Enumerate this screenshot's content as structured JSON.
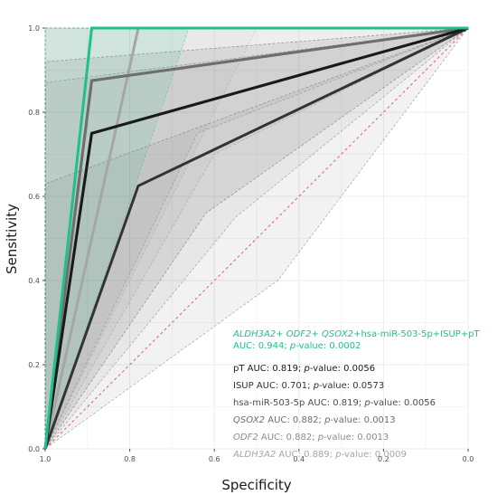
{
  "chart_data": {
    "type": "line",
    "title": "",
    "xlabel": "Specificity",
    "ylabel": "Sensitivity",
    "x_reversed": true,
    "xlim": [
      1.0,
      0.0
    ],
    "ylim": [
      0.0,
      1.0
    ],
    "x_ticks": [
      1.0,
      0.8,
      0.6,
      0.4,
      0.2,
      0.0
    ],
    "x_tick_labels": [
      "1.0",
      "0.8",
      "0.6",
      "0.4",
      "0.2",
      "0.0"
    ],
    "y_ticks": [
      0.0,
      0.2,
      0.4,
      0.6,
      0.8,
      1.0
    ],
    "y_tick_labels": [
      "0.0",
      "0.2",
      "0.4",
      "0.6",
      "0.8",
      "1.0"
    ],
    "grid": true,
    "reference_line": {
      "style": "dashed",
      "color": "#e06060",
      "from": [
        1.0,
        0.0
      ],
      "to": [
        0.0,
        1.0
      ]
    },
    "legend_position": "bottom-right",
    "series": [
      {
        "name": "ALDH3A2+ ODF2+ QSOX2+hsa-miR-503-5p+ISUP+pT",
        "auc_text": "AUC: 0.944; p-value: 0.0002",
        "color": "#1fbf8f",
        "stroke_width": 3,
        "points": [
          [
            1.0,
            0.0
          ],
          [
            0.89,
            1.0
          ],
          [
            0.0,
            1.0
          ]
        ],
        "ci_color": "#1fbf8f",
        "ci_opacity": 0.12,
        "ci_upper": [
          [
            1.0,
            0.0
          ],
          [
            1.0,
            1.0
          ],
          [
            0.0,
            1.0
          ]
        ],
        "ci_lower": [
          [
            1.0,
            0.0
          ],
          [
            0.66,
            1.0
          ],
          [
            0.0,
            1.0
          ]
        ]
      },
      {
        "name": "pT",
        "auc_text": "AUC: 0.819; p-value: 0.0056",
        "color": "#1a1a1a",
        "stroke_width": 3,
        "points": [
          [
            1.0,
            0.0
          ],
          [
            0.89,
            0.75
          ],
          [
            0.0,
            1.0
          ]
        ],
        "ci_color": "#404040",
        "ci_opacity": 0.1,
        "ci_upper": [
          [
            1.0,
            0.0
          ],
          [
            1.0,
            0.92
          ],
          [
            0.0,
            1.0
          ]
        ],
        "ci_lower": [
          [
            1.0,
            0.0
          ],
          [
            0.62,
            0.56
          ],
          [
            0.0,
            1.0
          ]
        ]
      },
      {
        "name": "ISUP",
        "auc_text": "AUC: 0.701; p-value: 0.0573",
        "color": "#333333",
        "stroke_width": 3,
        "points": [
          [
            1.0,
            0.0
          ],
          [
            0.78,
            0.625
          ],
          [
            0.0,
            1.0
          ]
        ],
        "ci_color": "#555555",
        "ci_opacity": 0.08,
        "ci_upper": [
          [
            1.0,
            0.0
          ],
          [
            1.0,
            0.63
          ],
          [
            0.0,
            1.0
          ]
        ],
        "ci_lower": [
          [
            1.0,
            0.0
          ],
          [
            0.45,
            0.4
          ],
          [
            0.0,
            1.0
          ]
        ]
      },
      {
        "name": "hsa-miR-503-5p",
        "auc_text": "AUC: 0.819; p-value: 0.0056",
        "color": "#4d4d4d",
        "stroke_width": 3,
        "points": [
          [
            1.0,
            0.0
          ],
          [
            0.89,
            0.75
          ],
          [
            0.0,
            1.0
          ]
        ],
        "ci_color": "#606060",
        "ci_opacity": 0.08,
        "ci_upper": [
          [
            1.0,
            0.0
          ],
          [
            1.0,
            0.87
          ],
          [
            0.0,
            1.0
          ]
        ],
        "ci_lower": [
          [
            1.0,
            0.0
          ],
          [
            0.55,
            0.55
          ],
          [
            0.0,
            1.0
          ]
        ]
      },
      {
        "name": "QSOX2",
        "auc_text": "AUC: 0.882; p-value: 0.0013",
        "color": "#6e6e6e",
        "stroke_width": 3,
        "points": [
          [
            1.0,
            0.0
          ],
          [
            0.89,
            0.875
          ],
          [
            0.0,
            1.0
          ]
        ],
        "ci_color": "#7a7a7a",
        "ci_opacity": 0.08,
        "ci_upper": [
          [
            1.0,
            0.0
          ],
          [
            1.0,
            1.0
          ],
          [
            0.0,
            1.0
          ]
        ],
        "ci_lower": [
          [
            1.0,
            0.0
          ],
          [
            0.64,
            0.75
          ],
          [
            0.0,
            1.0
          ]
        ]
      },
      {
        "name": "ODF2",
        "auc_text": "AUC: 0.882; p-value: 0.0013",
        "color": "#8c8c8c",
        "stroke_width": 3,
        "points": [
          [
            1.0,
            0.0
          ],
          [
            0.89,
            0.875
          ],
          [
            0.0,
            1.0
          ]
        ],
        "ci_color": "#999999",
        "ci_opacity": 0.07,
        "ci_upper": [
          [
            1.0,
            0.0
          ],
          [
            1.0,
            1.0
          ],
          [
            0.0,
            1.0
          ]
        ],
        "ci_lower": [
          [
            1.0,
            0.0
          ],
          [
            0.6,
            0.7
          ],
          [
            0.0,
            1.0
          ]
        ]
      },
      {
        "name": "ALDH3A2",
        "auc_text": "AUC: 0.889; p-value: 0.0009",
        "color": "#a6a6a6",
        "stroke_width": 3,
        "points": [
          [
            1.0,
            0.0
          ],
          [
            0.78,
            1.0
          ],
          [
            0.0,
            1.0
          ]
        ],
        "ci_color": "#b3b3b3",
        "ci_opacity": 0.08,
        "ci_upper": [
          [
            1.0,
            0.0
          ],
          [
            1.0,
            1.0
          ],
          [
            0.0,
            1.0
          ]
        ],
        "ci_lower": [
          [
            1.0,
            0.0
          ],
          [
            0.5,
            1.0
          ],
          [
            0.0,
            1.0
          ]
        ]
      }
    ],
    "legend": [
      {
        "color": "#1fbf8f",
        "parts": [
          [
            "ALDH3A2",
            "i"
          ],
          [
            "+ ",
            ""
          ],
          [
            "ODF2",
            "i"
          ],
          [
            "+ ",
            ""
          ],
          [
            "QSOX2",
            "i"
          ],
          [
            "+hsa-miR-503-5p+ISUP+pT",
            ""
          ]
        ],
        "line2": [
          [
            "AUC: 0.944; ",
            ""
          ],
          [
            "p",
            "i"
          ],
          [
            "-value: 0.0002",
            ""
          ]
        ]
      },
      {
        "color": "#1a1a1a",
        "parts": [
          [
            "pT AUC: 0.819; ",
            ""
          ],
          [
            "p",
            "i"
          ],
          [
            "-value: 0.0056",
            ""
          ]
        ]
      },
      {
        "color": "#333333",
        "parts": [
          [
            "ISUP AUC: 0.701; ",
            ""
          ],
          [
            "p",
            "i"
          ],
          [
            "-value: 0.0573",
            ""
          ]
        ]
      },
      {
        "color": "#4d4d4d",
        "parts": [
          [
            "hsa-miR-503-5p AUC: 0.819; ",
            ""
          ],
          [
            "p",
            "i"
          ],
          [
            "-value: 0.0056",
            ""
          ]
        ]
      },
      {
        "color": "#6e6e6e",
        "parts": [
          [
            "QSOX2",
            "i"
          ],
          [
            " AUC: 0.882; ",
            ""
          ],
          [
            "p",
            "i"
          ],
          [
            "-value: 0.0013",
            ""
          ]
        ]
      },
      {
        "color": "#8c8c8c",
        "parts": [
          [
            "ODF2",
            "i"
          ],
          [
            " AUC: 0.882; ",
            ""
          ],
          [
            "p",
            "i"
          ],
          [
            "-value: 0.0013",
            ""
          ]
        ]
      },
      {
        "color": "#a6a6a6",
        "parts": [
          [
            "ALDH3A2",
            "i"
          ],
          [
            " AUC: 0.889; ",
            ""
          ],
          [
            "p",
            "i"
          ],
          [
            "-value: 0.0009",
            ""
          ]
        ]
      }
    ]
  }
}
